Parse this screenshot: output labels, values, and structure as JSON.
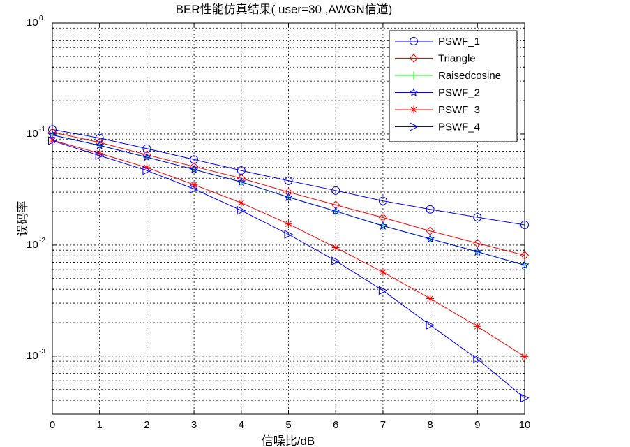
{
  "chart_data": {
    "type": "line",
    "title": "BER性能仿真结果( user=30 ,AWGN信道)",
    "xlabel": "信噪比/dB",
    "ylabel": "误码率",
    "xlim": [
      0,
      10
    ],
    "ylim": [
      0.0003,
      1
    ],
    "yscale": "log",
    "grid": true,
    "legend_position": "top-right",
    "x": [
      0,
      1,
      2,
      3,
      4,
      5,
      6,
      7,
      8,
      9,
      10
    ],
    "x_tick_labels": [
      "0",
      "1",
      "2",
      "3",
      "4",
      "5",
      "6",
      "7",
      "8",
      "9",
      "10"
    ],
    "y_ticks": [
      {
        "value": 1,
        "base": "10",
        "exp": "0"
      },
      {
        "value": 0.1,
        "base": "10",
        "exp": "-1"
      },
      {
        "value": 0.01,
        "base": "10",
        "exp": "-2"
      },
      {
        "value": 0.001,
        "base": "10",
        "exp": "-3"
      }
    ],
    "series": [
      {
        "name": "PSWF_1",
        "color": "#0000ff",
        "marker": "circle",
        "values": [
          0.11,
          0.092,
          0.074,
          0.059,
          0.047,
          0.038,
          0.031,
          0.025,
          0.021,
          0.0178,
          0.0152
        ]
      },
      {
        "name": "Triangle",
        "color": "#ff0000",
        "marker": "diamond",
        "values": [
          0.104,
          0.084,
          0.065,
          0.051,
          0.04,
          0.03,
          0.023,
          0.0177,
          0.0134,
          0.0104,
          0.0081
        ]
      },
      {
        "name": "Raisedcosine",
        "color": "#00ff00",
        "marker": "plus",
        "values": [
          0.098,
          0.079,
          0.062,
          0.048,
          0.037,
          0.027,
          0.0202,
          0.0149,
          0.0114,
          0.0087,
          0.0066
        ]
      },
      {
        "name": "PSWF_2",
        "color": "#0000ff",
        "marker": "star",
        "values": [
          0.098,
          0.079,
          0.062,
          0.048,
          0.037,
          0.027,
          0.0202,
          0.0149,
          0.0114,
          0.0087,
          0.0066
        ]
      },
      {
        "name": "PSWF_3",
        "color": "#ff0000",
        "marker": "asterisk",
        "values": [
          0.088,
          0.067,
          0.05,
          0.035,
          0.024,
          0.0155,
          0.0095,
          0.0057,
          0.0033,
          0.00185,
          0.00099
        ]
      },
      {
        "name": "PSWF_4",
        "color": "#0000ff",
        "marker": "triangle-right",
        "values": [
          0.087,
          0.064,
          0.047,
          0.032,
          0.0205,
          0.0125,
          0.0072,
          0.0039,
          0.0019,
          0.00094,
          0.00042
        ]
      }
    ]
  }
}
